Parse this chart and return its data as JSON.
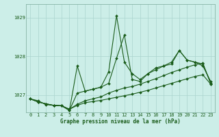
{
  "xlabel": "Graphe pression niveau de la mer (hPa)",
  "background_color": "#cceee8",
  "grid_color": "#aad4ce",
  "line_color": "#1a5c1a",
  "text_color": "#1a5c1a",
  "ylim": [
    1026.55,
    1029.35
  ],
  "xlim": [
    -0.5,
    23.5
  ],
  "yticks": [
    1027,
    1028,
    1029
  ],
  "xticks": [
    0,
    1,
    2,
    3,
    4,
    5,
    6,
    7,
    8,
    9,
    10,
    11,
    12,
    13,
    14,
    15,
    16,
    17,
    18,
    19,
    20,
    21,
    22,
    23
  ],
  "s1": [
    1026.9,
    1026.85,
    1026.75,
    1026.73,
    1026.72,
    1026.6,
    1027.75,
    1027.1,
    1027.15,
    1027.2,
    1027.6,
    1029.05,
    1027.85,
    1027.55,
    1027.4,
    1027.55,
    1027.7,
    1027.75,
    1027.85,
    1028.15,
    1027.9,
    1027.85,
    1027.75,
    1027.35
  ],
  "s2": [
    1026.9,
    1026.82,
    1026.77,
    1026.73,
    1026.72,
    1026.6,
    1027.05,
    1027.1,
    1027.15,
    1027.2,
    1027.3,
    1027.95,
    1028.55,
    1027.4,
    1027.35,
    1027.55,
    1027.65,
    1027.75,
    1027.8,
    1028.15,
    1027.9,
    1027.85,
    1027.8,
    1027.3
  ],
  "s3": [
    1026.9,
    1026.82,
    1026.77,
    1026.73,
    1026.72,
    1026.63,
    1026.76,
    1026.85,
    1026.9,
    1026.95,
    1027.05,
    1027.12,
    1027.18,
    1027.22,
    1027.28,
    1027.35,
    1027.42,
    1027.5,
    1027.58,
    1027.65,
    1027.72,
    1027.78,
    1027.82,
    1027.3
  ],
  "s4": [
    1026.9,
    1026.82,
    1026.77,
    1026.73,
    1026.72,
    1026.63,
    1026.73,
    1026.8,
    1026.83,
    1026.86,
    1026.9,
    1026.94,
    1026.98,
    1027.02,
    1027.07,
    1027.12,
    1027.18,
    1027.24,
    1027.3,
    1027.36,
    1027.42,
    1027.48,
    1027.52,
    1027.28
  ]
}
